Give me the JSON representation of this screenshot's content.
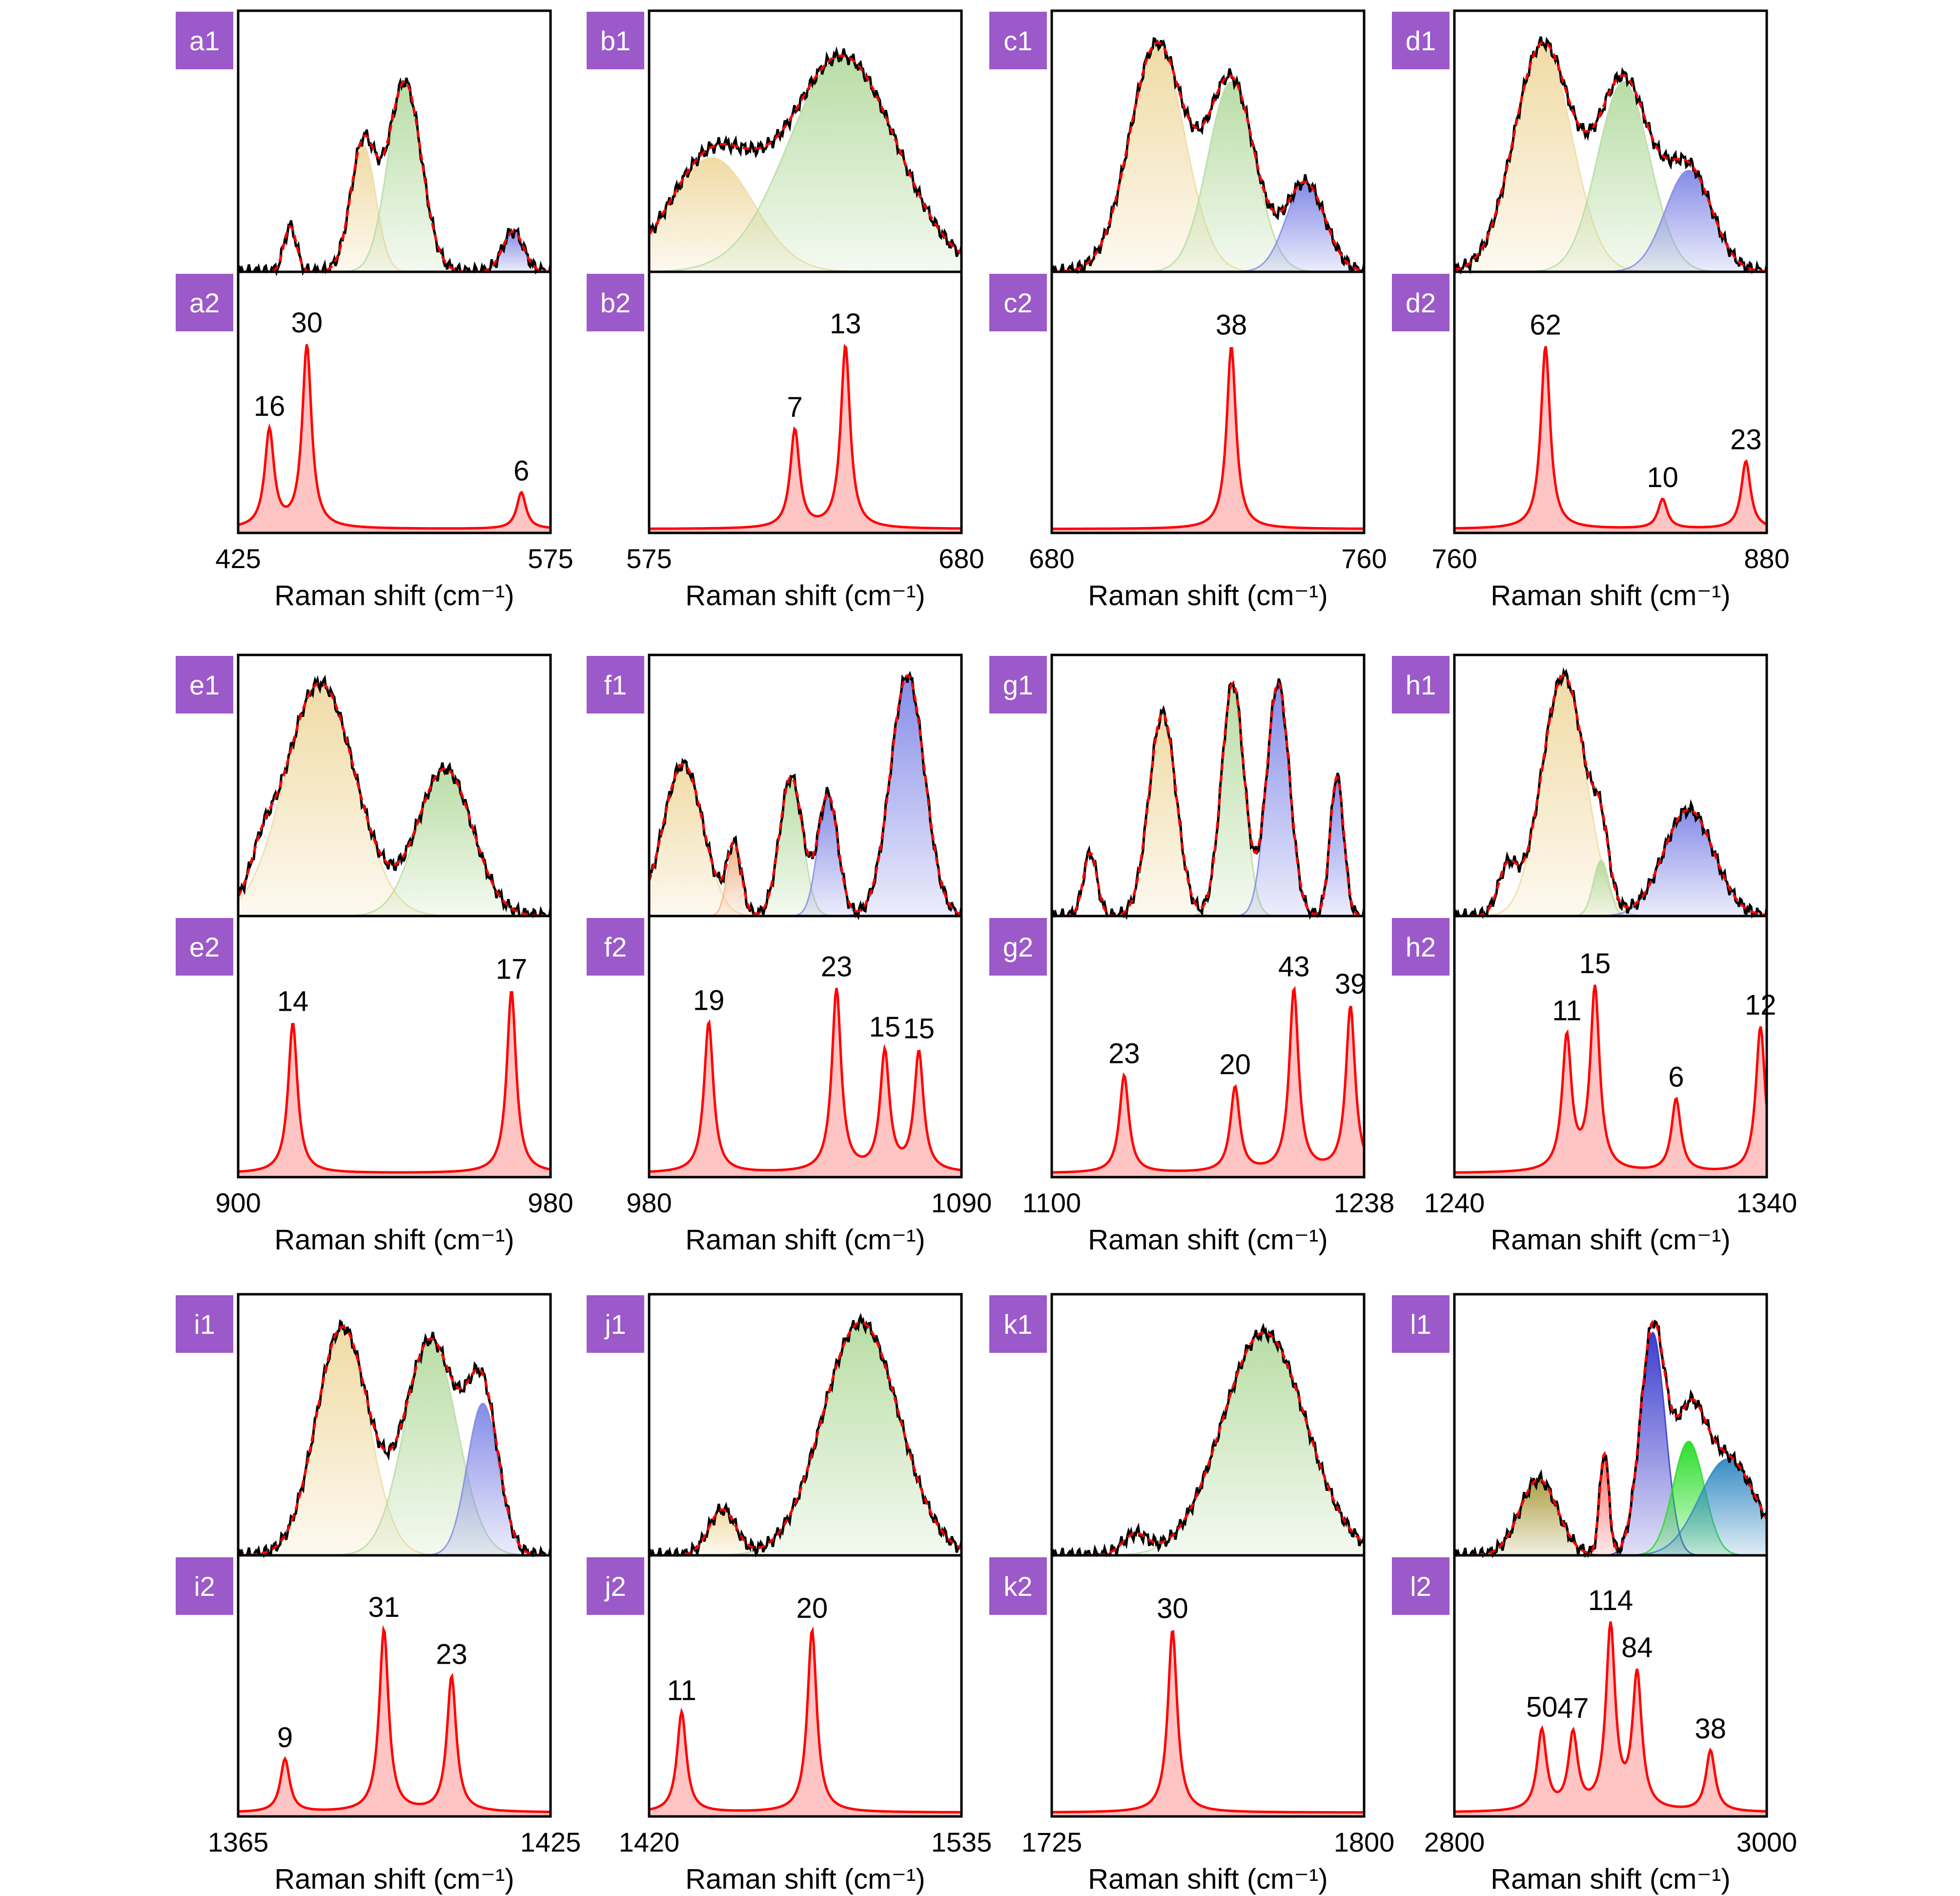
{
  "figure": {
    "colors": {
      "badge": "#9b59c9",
      "measured": "#000000",
      "fit_envelope": "#ff0000",
      "component_yellow": "#f0d9a0",
      "component_green": "#b5dba0",
      "component_blue": "#7f86e6",
      "component_orange": "#f2b48a",
      "peak_curve": "#ff0000",
      "peak_fill": "#ffc4c4"
    }
  },
  "chart_data": [
    {
      "id": "a",
      "type": "line",
      "top_badge": "a1",
      "bottom_badge": "a2",
      "xlim": [
        425,
        575
      ],
      "tick_labels": [
        "425",
        "575"
      ],
      "xlabel": "Raman shift (cm⁻¹)",
      "components": [
        {
          "color": "yellow",
          "center": 485,
          "width": 6,
          "height": 0.5
        },
        {
          "color": "green",
          "center": 505,
          "width": 8,
          "height": 0.75
        },
        {
          "color": "blue",
          "center": 557,
          "width": 5,
          "height": 0.16
        }
      ],
      "extra_peaks": [
        {
          "center": 450,
          "width": 3,
          "height": 0.18
        }
      ],
      "peaks": [
        {
          "x": 440,
          "value": 16
        },
        {
          "x": 458,
          "value": 30
        },
        {
          "x": 561,
          "value": 6
        }
      ]
    },
    {
      "id": "b",
      "type": "line",
      "top_badge": "b1",
      "bottom_badge": "b2",
      "xlim": [
        575,
        680
      ],
      "tick_labels": [
        "575",
        "680"
      ],
      "xlabel": "Raman shift (cm⁻¹)",
      "components": [
        {
          "color": "yellow",
          "center": 596,
          "width": 14,
          "height": 0.45
        },
        {
          "color": "green",
          "center": 640,
          "width": 18,
          "height": 0.85
        }
      ],
      "extra_peaks": [],
      "peaks": [
        {
          "x": 624,
          "value": 7
        },
        {
          "x": 641,
          "value": 13
        }
      ]
    },
    {
      "id": "c",
      "type": "line",
      "top_badge": "c1",
      "bottom_badge": "c2",
      "xlim": [
        680,
        760
      ],
      "tick_labels": [
        "680",
        "760"
      ],
      "xlabel": "Raman shift (cm⁻¹)",
      "components": [
        {
          "color": "yellow",
          "center": 707,
          "width": 7,
          "height": 0.9
        },
        {
          "color": "green",
          "center": 726,
          "width": 6,
          "height": 0.75
        },
        {
          "color": "blue",
          "center": 745,
          "width": 5,
          "height": 0.35
        }
      ],
      "extra_peaks": [],
      "peaks": [
        {
          "x": 726,
          "value": 38
        }
      ]
    },
    {
      "id": "d",
      "type": "line",
      "top_badge": "d1",
      "bottom_badge": "d2",
      "xlim": [
        760,
        880
      ],
      "tick_labels": [
        "760",
        "880"
      ],
      "xlabel": "Raman shift (cm⁻¹)",
      "components": [
        {
          "color": "yellow",
          "center": 794,
          "width": 11,
          "height": 0.9
        },
        {
          "color": "green",
          "center": 825,
          "width": 10,
          "height": 0.75
        },
        {
          "color": "blue",
          "center": 850,
          "width": 9,
          "height": 0.4
        }
      ],
      "extra_peaks": [],
      "peaks": [
        {
          "x": 795,
          "value": 62
        },
        {
          "x": 840,
          "value": 10
        },
        {
          "x": 872,
          "value": 23
        }
      ]
    },
    {
      "id": "e",
      "type": "line",
      "top_badge": "e1",
      "bottom_badge": "e2",
      "xlim": [
        900,
        980
      ],
      "tick_labels": [
        "900",
        "980"
      ],
      "xlabel": "Raman shift (cm⁻¹)",
      "components": [
        {
          "color": "yellow",
          "center": 921,
          "width": 9,
          "height": 0.92
        },
        {
          "color": "green",
          "center": 953,
          "width": 7,
          "height": 0.58
        }
      ],
      "extra_peaks": [
        {
          "center": 906,
          "width": 3,
          "height": 0.12
        }
      ],
      "peaks": [
        {
          "x": 914,
          "value": 14
        },
        {
          "x": 970,
          "value": 17
        }
      ]
    },
    {
      "id": "f",
      "type": "line",
      "top_badge": "f1",
      "bottom_badge": "f2",
      "xlim": [
        980,
        1090
      ],
      "tick_labels": [
        "980",
        "1090"
      ],
      "xlabel": "Raman shift (cm⁻¹)",
      "components": [
        {
          "color": "yellow",
          "center": 992,
          "width": 7,
          "height": 0.6
        },
        {
          "color": "orange",
          "center": 1010,
          "width": 2.5,
          "height": 0.27
        },
        {
          "color": "green",
          "center": 1030,
          "width": 4,
          "height": 0.55
        },
        {
          "color": "blue",
          "center": 1043,
          "width": 3.5,
          "height": 0.48
        },
        {
          "color": "blue",
          "center": 1071,
          "width": 6,
          "height": 0.95
        }
      ],
      "extra_peaks": [],
      "peaks": [
        {
          "x": 1001,
          "value": 19
        },
        {
          "x": 1046,
          "value": 23
        },
        {
          "x": 1063,
          "value": 15
        },
        {
          "x": 1075,
          "value": 15
        }
      ]
    },
    {
      "id": "g",
      "type": "line",
      "top_badge": "g1",
      "bottom_badge": "g2",
      "xlim": [
        1100,
        1238
      ],
      "tick_labels": [
        "1100",
        "1238"
      ],
      "xlabel": "Raman shift (cm⁻¹)",
      "components": [
        {
          "color": "yellow",
          "center": 1149,
          "width": 6,
          "height": 0.8
        },
        {
          "color": "green",
          "center": 1180,
          "width": 5,
          "height": 0.92
        },
        {
          "color": "blue",
          "center": 1200,
          "width": 5,
          "height": 0.92
        },
        {
          "color": "blue",
          "center": 1226,
          "width": 3,
          "height": 0.55
        }
      ],
      "extra_peaks": [
        {
          "center": 1117,
          "width": 3,
          "height": 0.25
        }
      ],
      "peaks": [
        {
          "x": 1132,
          "value": 23
        },
        {
          "x": 1181,
          "value": 20
        },
        {
          "x": 1207,
          "value": 43
        },
        {
          "x": 1232,
          "value": 39
        }
      ]
    },
    {
      "id": "h",
      "type": "line",
      "top_badge": "h1",
      "bottom_badge": "h2",
      "xlim": [
        1240,
        1340
      ],
      "tick_labels": [
        "1240",
        "1340"
      ],
      "xlabel": "Raman shift (cm⁻¹)",
      "components": [
        {
          "color": "yellow",
          "center": 1275,
          "width": 7,
          "height": 0.95
        },
        {
          "color": "green",
          "center": 1287,
          "width": 2.5,
          "height": 0.22
        },
        {
          "color": "blue",
          "center": 1315,
          "width": 8,
          "height": 0.42
        }
      ],
      "extra_peaks": [
        {
          "center": 1257,
          "width": 3,
          "height": 0.18
        }
      ],
      "peaks": [
        {
          "x": 1276,
          "value": 11
        },
        {
          "x": 1285,
          "value": 15
        },
        {
          "x": 1311,
          "value": 6
        },
        {
          "x": 1338,
          "value": 12
        }
      ]
    },
    {
      "id": "i",
      "type": "line",
      "top_badge": "i1",
      "bottom_badge": "i2",
      "xlim": [
        1365,
        1425
      ],
      "tick_labels": [
        "1365",
        "1425"
      ],
      "xlabel": "Raman shift (cm⁻¹)",
      "components": [
        {
          "color": "yellow",
          "center": 1385,
          "width": 5,
          "height": 0.9
        },
        {
          "color": "green",
          "center": 1402,
          "width": 5,
          "height": 0.85
        },
        {
          "color": "blue",
          "center": 1412,
          "width": 3,
          "height": 0.6
        }
      ],
      "extra_peaks": [],
      "peaks": [
        {
          "x": 1374,
          "value": 9
        },
        {
          "x": 1393,
          "value": 31
        },
        {
          "x": 1406,
          "value": 23
        }
      ]
    },
    {
      "id": "j",
      "type": "line",
      "top_badge": "j1",
      "bottom_badge": "j2",
      "xlim": [
        1420,
        1535
      ],
      "tick_labels": [
        "1420",
        "1535"
      ],
      "xlabel": "Raman shift (cm⁻¹)",
      "components": [
        {
          "color": "yellow",
          "center": 1447,
          "width": 5,
          "height": 0.18
        },
        {
          "color": "green",
          "center": 1498,
          "width": 14,
          "height": 0.92
        }
      ],
      "extra_peaks": [],
      "peaks": [
        {
          "x": 1432,
          "value": 11
        },
        {
          "x": 1480,
          "value": 20
        }
      ]
    },
    {
      "id": "k",
      "type": "line",
      "top_badge": "k1",
      "bottom_badge": "k2",
      "xlim": [
        1725,
        1800
      ],
      "tick_labels": [
        "1725",
        "1800"
      ],
      "xlabel": "Raman shift (cm⁻¹)",
      "components": [
        {
          "color": "green",
          "center": 1776,
          "width": 10,
          "height": 0.88
        }
      ],
      "extra_peaks": [
        {
          "center": 1745,
          "width": 3,
          "height": 0.08
        }
      ],
      "peaks": [
        {
          "x": 1754,
          "value": 30
        }
      ]
    },
    {
      "id": "l",
      "type": "line",
      "top_badge": "l1",
      "bottom_badge": "l2",
      "xlim": [
        2800,
        3000
      ],
      "tick_labels": [
        "2800",
        "3000"
      ],
      "xlabel": "Raman shift (cm⁻¹)",
      "components": [
        {
          "color": "#a89a3a",
          "center": 2854,
          "width": 12,
          "height": 0.3
        },
        {
          "color": "#ff6b6b",
          "center": 2896,
          "width": 3,
          "height": 0.4
        },
        {
          "color": "#3333cc",
          "center": 2927,
          "width": 8,
          "height": 0.88
        },
        {
          "color": "#22dd22",
          "center": 2950,
          "width": 10,
          "height": 0.45
        },
        {
          "color": "#2e86c1",
          "center": 2975,
          "width": 18,
          "height": 0.38
        }
      ],
      "extra_peaks": [],
      "peaks": [
        {
          "x": 2856,
          "value": 50
        },
        {
          "x": 2876,
          "value": 47
        },
        {
          "x": 2900,
          "value": 114
        },
        {
          "x": 2917,
          "value": 84
        },
        {
          "x": 2964,
          "value": 38
        }
      ]
    }
  ]
}
